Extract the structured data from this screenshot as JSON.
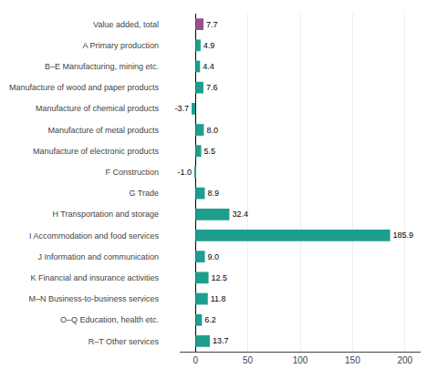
{
  "chart_data": {
    "type": "bar",
    "orientation": "horizontal",
    "categories": [
      "Value added, total",
      "A Primary production",
      "B–E Manufacturing, mining etc.",
      "Manufacture of wood and paper products",
      "Manufacture of chemical products",
      "Manufacture of metal products",
      "Manufacture of electronic products",
      "F Construction",
      "G Trade",
      "H Transportation and storage",
      "I Accommodation and food services",
      "J Information and communication",
      "K Financial and insurance activities",
      "M–N Business-to-business services",
      "O–Q Education, health etc.",
      "R–T Other services"
    ],
    "values": [
      7.7,
      4.9,
      4.4,
      7.6,
      -3.7,
      8.0,
      5.5,
      -1.0,
      8.9,
      32.4,
      185.9,
      9.0,
      12.5,
      11.8,
      6.2,
      13.7
    ],
    "value_labels": [
      "7.7",
      "4.9",
      "4.4",
      "7.6",
      "-3.7",
      "8.0",
      "5.5",
      "-1.0",
      "8.9",
      "32.4",
      "185.9",
      "9.0",
      "12.5",
      "11.8",
      "6.2",
      "13.7"
    ],
    "colors": [
      "#9B4F8A",
      "#1d9e8f",
      "#1d9e8f",
      "#1d9e8f",
      "#1d9e8f",
      "#1d9e8f",
      "#1d9e8f",
      "#1d9e8f",
      "#1d9e8f",
      "#1d9e8f",
      "#1d9e8f",
      "#1d9e8f",
      "#1d9e8f",
      "#1d9e8f",
      "#1d9e8f",
      "#1d9e8f"
    ],
    "xlim": [
      -15,
      215
    ],
    "xticks": [
      0,
      50,
      100,
      150,
      200
    ],
    "grid": true,
    "data_labels": true
  }
}
